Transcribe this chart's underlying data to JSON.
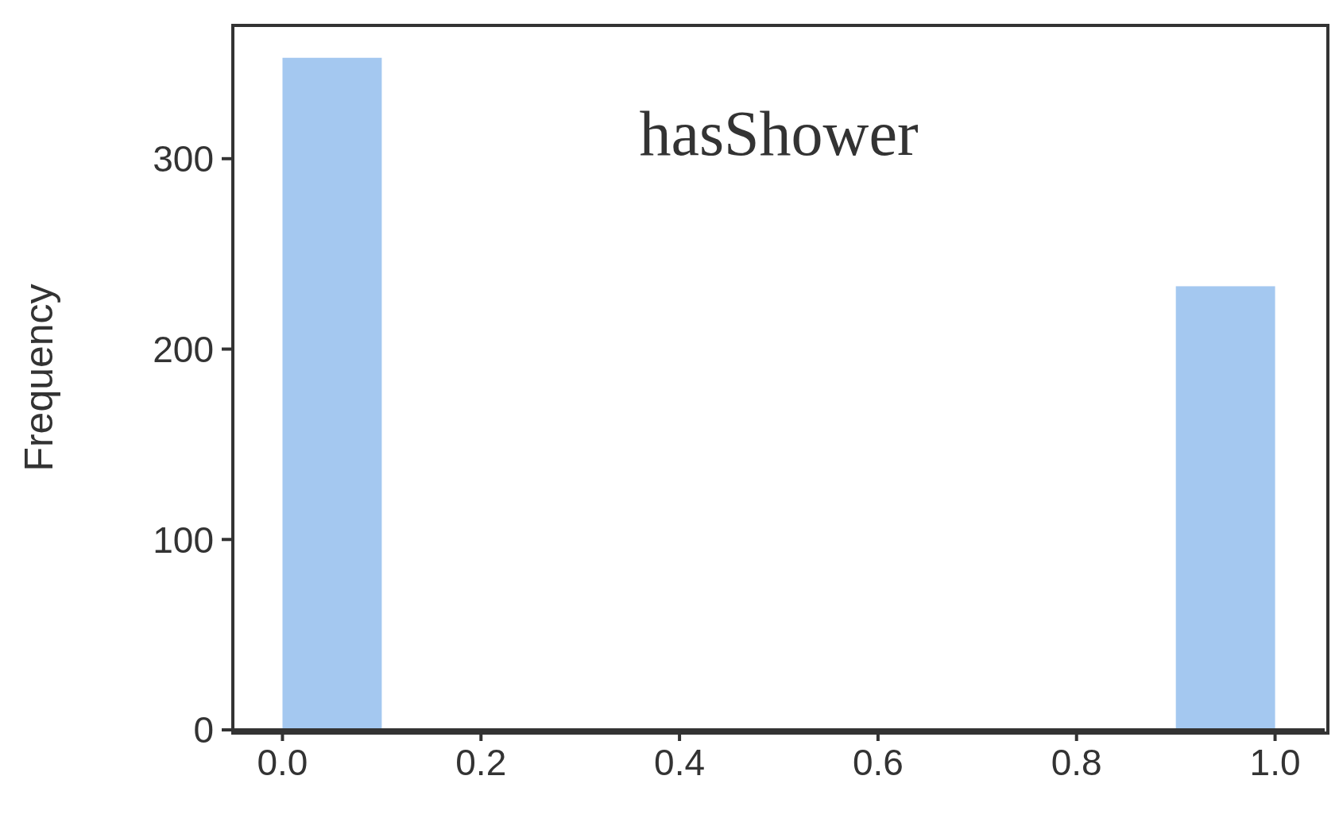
{
  "chart_data": {
    "type": "histogram",
    "title": "hasShower",
    "ylabel": "Frequency",
    "bins": [
      0,
      0.1,
      0.2,
      0.3,
      0.4,
      0.5,
      0.6,
      0.7,
      0.8,
      0.9,
      1.0
    ],
    "values": [
      353,
      0,
      0,
      0,
      0,
      0,
      0,
      0,
      0,
      233
    ],
    "color": "#a4c8f0",
    "xlim": [
      -0.05,
      1.05
    ],
    "xticks": [
      {
        "value": 0,
        "label": "0.0"
      },
      {
        "value": 0.2,
        "label": "0.2"
      },
      {
        "value": 0.4,
        "label": "0.4"
      },
      {
        "value": 0.6,
        "label": "0.6"
      },
      {
        "value": 0.8,
        "label": "0.8"
      },
      {
        "value": 1,
        "label": "1.0"
      }
    ],
    "ylim": [
      0,
      370
    ],
    "yticks": [
      0,
      100,
      200,
      300
    ],
    "grid": false
  }
}
